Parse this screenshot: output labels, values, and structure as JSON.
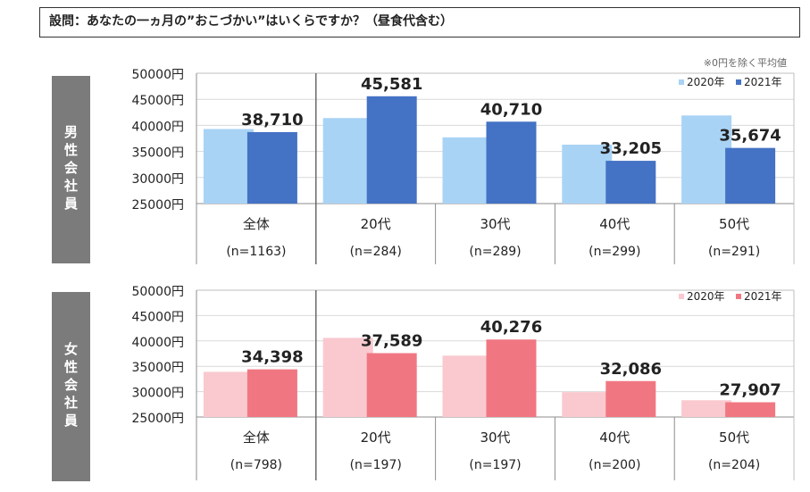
{
  "question": "設問：あなたの一ヵ月の”おこづかい”はいくらですか？（昼食代含む）",
  "note": "※0円を除く平均値",
  "chart_data": [
    {
      "type": "bar",
      "group_label": "男性会社員",
      "categories": [
        "全体",
        "20代",
        "30代",
        "40代",
        "50代"
      ],
      "sample_sizes": [
        "(n=1163)",
        "(n=284)",
        "(n=289)",
        "(n=299)",
        "(n=291)"
      ],
      "series": [
        {
          "name": "2020年",
          "color": "#a9d3f5",
          "values": [
            39300,
            41400,
            37700,
            36300,
            41900
          ],
          "labels": [
            "",
            "",
            "",
            "",
            ""
          ]
        },
        {
          "name": "2021年",
          "color": "#4472c4",
          "values": [
            38710,
            45581,
            40710,
            33205,
            35674
          ],
          "labels": [
            "38,710",
            "45,581",
            "40,710",
            "33,205",
            "35,674"
          ]
        }
      ],
      "yticks": [
        "25000円",
        "30000円",
        "35000円",
        "40000円",
        "45000円",
        "50000円"
      ],
      "ylim": [
        25000,
        50000
      ],
      "legend_position": "top-right"
    },
    {
      "type": "bar",
      "group_label": "女性会社員",
      "categories": [
        "全体",
        "20代",
        "30代",
        "40代",
        "50代"
      ],
      "sample_sizes": [
        "(n=798)",
        "(n=197)",
        "(n=197)",
        "(n=200)",
        "(n=204)"
      ],
      "series": [
        {
          "name": "2020年",
          "color": "#f9c9cf",
          "values": [
            33900,
            40600,
            37100,
            29900,
            28300
          ],
          "labels": [
            "",
            "",
            "",
            "",
            ""
          ]
        },
        {
          "name": "2021年",
          "color": "#f07782",
          "values": [
            34398,
            37589,
            40276,
            32086,
            27907
          ],
          "labels": [
            "34,398",
            "37,589",
            "40,276",
            "32,086",
            "27,907"
          ]
        }
      ],
      "yticks": [
        "25000円",
        "30000円",
        "35000円",
        "40000円",
        "45000円",
        "50000円"
      ],
      "ylim": [
        25000,
        50000
      ],
      "legend_position": "top-right"
    }
  ]
}
